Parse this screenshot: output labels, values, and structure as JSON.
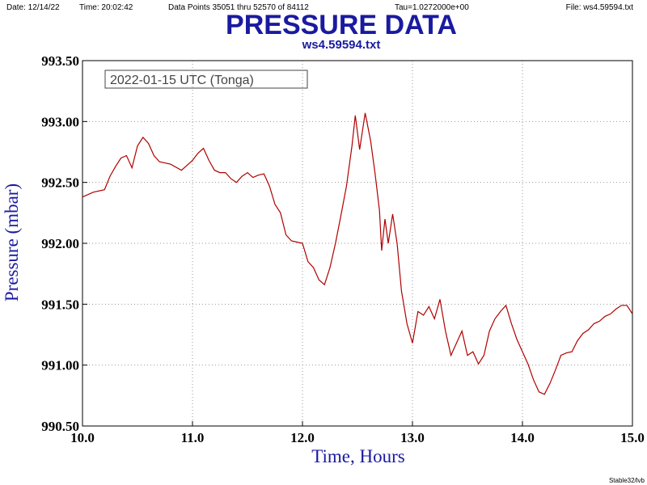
{
  "header": {
    "date": "Date: 12/14/22",
    "time": "Time: 20:02:42",
    "points": "Data Points 35051 thru 52570 of 84112",
    "tau": "Tau=1.0272000e+00",
    "file": "File: ws4.59594.txt"
  },
  "footer": "Stable32/lvb",
  "chart_data": {
    "type": "line",
    "title": "PRESSURE DATA",
    "subtitle": "ws4.59594.txt",
    "annotation": "2022-01-15 UTC (Tonga)",
    "x_label": "Time, Hours",
    "y_label": "Pressure (mbar)",
    "xlim": [
      10,
      15
    ],
    "ylim": [
      990.5,
      993.5
    ],
    "xticks": [
      {
        "value": 10,
        "label": "10.0"
      },
      {
        "value": 11,
        "label": "11.0"
      },
      {
        "value": 12,
        "label": "12.0"
      },
      {
        "value": 13,
        "label": "13.0"
      },
      {
        "value": 14,
        "label": "14.0"
      },
      {
        "value": 15,
        "label": "15.0"
      }
    ],
    "yticks": [
      {
        "value": 990.5,
        "label": "990.50"
      },
      {
        "value": 991,
        "label": "991.00"
      },
      {
        "value": 991.5,
        "label": "991.50"
      },
      {
        "value": 992,
        "label": "992.00"
      },
      {
        "value": 992.5,
        "label": "992.50"
      },
      {
        "value": 993,
        "label": "993.00"
      },
      {
        "value": 993.5,
        "label": "993.50"
      }
    ],
    "grid": true,
    "x": [
      10.0,
      10.1,
      10.2,
      10.25,
      10.3,
      10.35,
      10.4,
      10.45,
      10.5,
      10.55,
      10.6,
      10.65,
      10.7,
      10.8,
      10.9,
      10.95,
      11.0,
      11.05,
      11.1,
      11.15,
      11.2,
      11.25,
      11.3,
      11.35,
      11.4,
      11.45,
      11.5,
      11.55,
      11.6,
      11.65,
      11.7,
      11.75,
      11.8,
      11.85,
      11.9,
      11.95,
      12.0,
      12.05,
      12.1,
      12.15,
      12.2,
      12.25,
      12.3,
      12.35,
      12.4,
      12.45,
      12.48,
      12.52,
      12.57,
      12.62,
      12.66,
      12.7,
      12.72,
      12.75,
      12.78,
      12.82,
      12.86,
      12.9,
      12.95,
      13.0,
      13.05,
      13.1,
      13.15,
      13.2,
      13.25,
      13.3,
      13.35,
      13.4,
      13.45,
      13.5,
      13.55,
      13.6,
      13.65,
      13.7,
      13.75,
      13.8,
      13.85,
      13.9,
      13.95,
      14.0,
      14.05,
      14.1,
      14.15,
      14.2,
      14.25,
      14.3,
      14.35,
      14.4,
      14.45,
      14.5,
      14.55,
      14.6,
      14.65,
      14.7,
      14.75,
      14.8,
      14.85,
      14.9,
      14.95,
      15.0
    ],
    "series": [
      {
        "color": "#b00000",
        "values": [
          992.38,
          992.42,
          992.44,
          992.55,
          992.63,
          992.7,
          992.72,
          992.62,
          992.8,
          992.87,
          992.82,
          992.72,
          992.67,
          992.65,
          992.6,
          992.64,
          992.68,
          992.74,
          992.78,
          992.68,
          992.6,
          992.58,
          992.58,
          992.53,
          992.5,
          992.55,
          992.58,
          992.54,
          992.56,
          992.57,
          992.47,
          992.32,
          992.25,
          992.07,
          992.02,
          992.01,
          992.0,
          991.85,
          991.8,
          991.7,
          991.66,
          991.8,
          992.0,
          992.23,
          992.47,
          992.8,
          993.05,
          992.77,
          993.07,
          992.84,
          992.57,
          992.27,
          991.94,
          992.2,
          992.0,
          992.24,
          992.0,
          991.61,
          991.34,
          991.18,
          991.44,
          991.41,
          991.48,
          991.38,
          991.54,
          991.28,
          991.08,
          991.18,
          991.28,
          991.08,
          991.11,
          991.01,
          991.08,
          991.28,
          991.38,
          991.44,
          991.49,
          991.34,
          991.21,
          991.11,
          991.01,
          990.88,
          990.78,
          990.76,
          990.85,
          990.96,
          991.08,
          991.1,
          991.11,
          991.2,
          991.26,
          991.29,
          991.34,
          991.36,
          991.4,
          991.42,
          991.46,
          991.49,
          991.49,
          991.42
        ]
      }
    ]
  }
}
